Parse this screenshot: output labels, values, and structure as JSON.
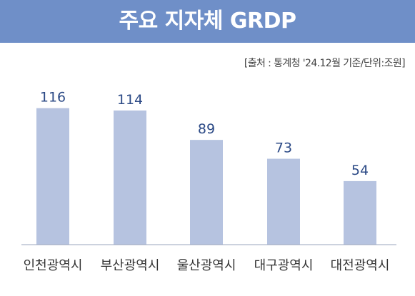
{
  "header": {
    "title": "주요 지자체 GRDP",
    "source": "[출처 : 통계청 '24.12월 기준/단위:조원]"
  },
  "colors": {
    "header_bg": "#6f8fc8",
    "bar": "#b6c3e0",
    "value_text": "#2c4a86",
    "baseline": "#9aa6bd"
  },
  "chart_data": {
    "type": "bar",
    "title": "주요 지자체 GRDP",
    "xlabel": "",
    "ylabel": "",
    "categories": [
      "인천광역시",
      "부산광역시",
      "울산광역시",
      "대구광역시",
      "대전광역시"
    ],
    "values": [
      116,
      114,
      89,
      73,
      54
    ],
    "ylim": [
      0,
      130
    ],
    "grid": false,
    "legend": "none"
  }
}
